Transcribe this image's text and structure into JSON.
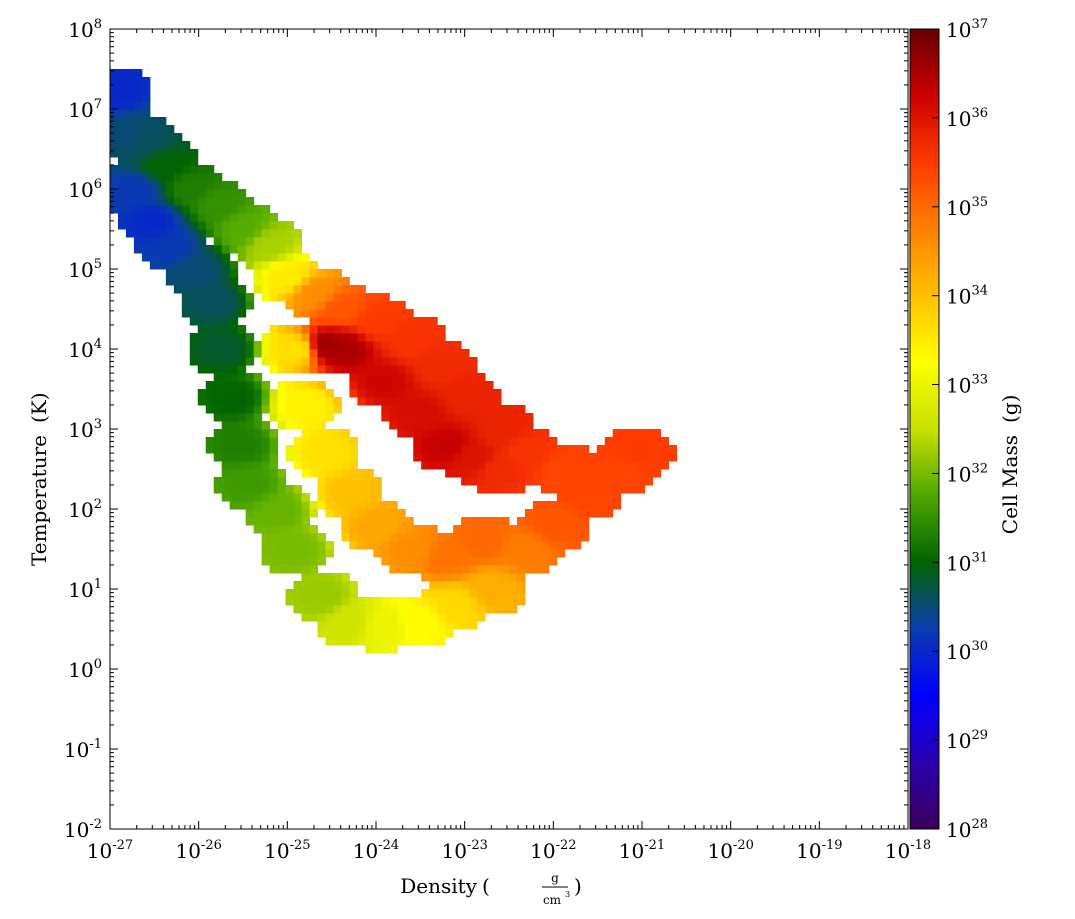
{
  "chart_data": {
    "type": "heatmap",
    "title": "",
    "xlabel": "Density",
    "xunit": {
      "numerator": "g",
      "denominator": "cm",
      "denominator_exp": "3"
    },
    "ylabel": "Temperature",
    "yunit": "(K)",
    "xscale": "log",
    "yscale": "log",
    "xlim": [
      1e-27,
      1e-18
    ],
    "ylim": [
      0.01,
      100000000.0
    ],
    "x_ticks": [
      {
        "base": "10",
        "exp": "-27"
      },
      {
        "base": "10",
        "exp": "-26"
      },
      {
        "base": "10",
        "exp": "-25"
      },
      {
        "base": "10",
        "exp": "-24"
      },
      {
        "base": "10",
        "exp": "-23"
      },
      {
        "base": "10",
        "exp": "-22"
      },
      {
        "base": "10",
        "exp": "-21"
      },
      {
        "base": "10",
        "exp": "-20"
      },
      {
        "base": "10",
        "exp": "-19"
      },
      {
        "base": "10",
        "exp": "-18"
      }
    ],
    "y_ticks": [
      {
        "base": "10",
        "exp": "-2"
      },
      {
        "base": "10",
        "exp": "-1"
      },
      {
        "base": "10",
        "exp": "0"
      },
      {
        "base": "10",
        "exp": "1"
      },
      {
        "base": "10",
        "exp": "2"
      },
      {
        "base": "10",
        "exp": "3"
      },
      {
        "base": "10",
        "exp": "4"
      },
      {
        "base": "10",
        "exp": "5"
      },
      {
        "base": "10",
        "exp": "6"
      },
      {
        "base": "10",
        "exp": "7"
      },
      {
        "base": "10",
        "exp": "8"
      }
    ],
    "colorbar": {
      "label": "Cell Mass",
      "unit": "(g)",
      "scale": "log",
      "range": [
        1e+28,
        1e+37
      ],
      "ticks": [
        {
          "base": "10",
          "exp": "28"
        },
        {
          "base": "10",
          "exp": "29"
        },
        {
          "base": "10",
          "exp": "30"
        },
        {
          "base": "10",
          "exp": "31"
        },
        {
          "base": "10",
          "exp": "32"
        },
        {
          "base": "10",
          "exp": "33"
        },
        {
          "base": "10",
          "exp": "34"
        },
        {
          "base": "10",
          "exp": "35"
        },
        {
          "base": "10",
          "exp": "36"
        },
        {
          "base": "10",
          "exp": "37"
        }
      ],
      "colormap": [
        "#3b0058",
        "#2a00b0",
        "#0000ff",
        "#0a3cae",
        "#006400",
        "#4ea800",
        "#c8e000",
        "#ffff00",
        "#ffc000",
        "#ff8000",
        "#ff3a00",
        "#cc0000",
        "#660000"
      ]
    },
    "grid": false,
    "legend": "none",
    "series": [
      {
        "description": "2D histogram of cell mass in log-density / log-temperature bins; each point is [log10 density (g/cm^3), log10 T (K), log10 cell mass (g)]",
        "anchors": [
          [
            -26.95,
            7.2,
            30.0
          ],
          [
            -26.8,
            6.7,
            30.5
          ],
          [
            -26.6,
            6.6,
            30.6
          ],
          [
            -26.4,
            6.3,
            31.0
          ],
          [
            -26.1,
            6.0,
            31.3
          ],
          [
            -25.8,
            5.8,
            31.5
          ],
          [
            -25.5,
            5.5,
            31.8
          ],
          [
            -25.2,
            5.3,
            32.3
          ],
          [
            -26.7,
            6.0,
            30.2
          ],
          [
            -26.5,
            5.6,
            30.0
          ],
          [
            -26.3,
            5.3,
            30.2
          ],
          [
            -26.0,
            5.0,
            30.5
          ],
          [
            -25.8,
            4.6,
            30.6
          ],
          [
            -25.7,
            4.0,
            30.8
          ],
          [
            -25.6,
            3.4,
            31.0
          ],
          [
            -25.5,
            2.8,
            31.3
          ],
          [
            -25.4,
            2.3,
            31.6
          ],
          [
            -25.1,
            2.0,
            31.9
          ],
          [
            -24.9,
            1.5,
            32.0
          ],
          [
            -24.6,
            0.9,
            32.2
          ],
          [
            -24.3,
            0.6,
            32.6
          ],
          [
            -23.9,
            0.55,
            33.0
          ],
          [
            -23.5,
            0.6,
            33.3
          ],
          [
            -23.1,
            0.8,
            33.7
          ],
          [
            -22.7,
            1.0,
            34.2
          ],
          [
            -22.3,
            1.5,
            34.8
          ],
          [
            -22.0,
            1.8,
            35.2
          ],
          [
            -21.6,
            2.2,
            35.4
          ],
          [
            -21.2,
            2.5,
            35.4
          ],
          [
            -21.05,
            2.7,
            35.5
          ],
          [
            -25.0,
            4.9,
            33.5
          ],
          [
            -24.7,
            4.7,
            34.6
          ],
          [
            -24.4,
            4.5,
            35.2
          ],
          [
            -24.0,
            4.35,
            35.5
          ],
          [
            -23.6,
            4.1,
            35.6
          ],
          [
            -23.3,
            3.8,
            35.7
          ],
          [
            -23.0,
            3.4,
            35.8
          ],
          [
            -22.6,
            3.0,
            35.8
          ],
          [
            -22.3,
            2.7,
            35.6
          ],
          [
            -21.9,
            2.5,
            35.4
          ],
          [
            -24.55,
            4.05,
            36.6
          ],
          [
            -24.35,
            4.0,
            36.5
          ],
          [
            -23.9,
            3.6,
            36.2
          ],
          [
            -23.5,
            3.2,
            36.1
          ],
          [
            -23.2,
            2.8,
            36.3
          ],
          [
            -22.9,
            2.65,
            36.0
          ],
          [
            -22.6,
            2.5,
            35.7
          ],
          [
            -24.9,
            4.0,
            33.6
          ],
          [
            -24.8,
            3.3,
            33.4
          ],
          [
            -24.6,
            2.7,
            33.6
          ],
          [
            -24.3,
            2.2,
            34.0
          ],
          [
            -24.0,
            1.8,
            34.3
          ],
          [
            -23.6,
            1.5,
            34.6
          ],
          [
            -23.2,
            1.4,
            34.9
          ],
          [
            -22.8,
            1.6,
            35.0
          ]
        ]
      }
    ]
  }
}
